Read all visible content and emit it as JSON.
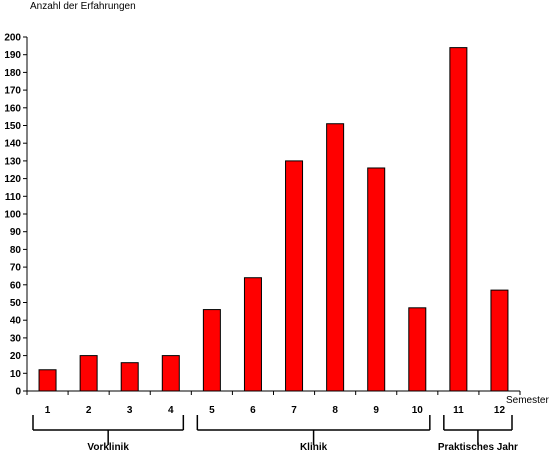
{
  "chart_data": {
    "type": "bar",
    "title": "",
    "ylabel": "Anzahl der Erfahrungen",
    "xlabel": "Semester",
    "categories": [
      "1",
      "2",
      "3",
      "4",
      "5",
      "6",
      "7",
      "8",
      "9",
      "10",
      "11",
      "12"
    ],
    "values": [
      12,
      20,
      16,
      20,
      46,
      64,
      130,
      151,
      126,
      47,
      194,
      57
    ],
    "ylim": [
      0,
      200
    ],
    "yticks": [
      "0",
      "10",
      "20",
      "30",
      "40",
      "50",
      "60",
      "70",
      "80",
      "90",
      "100",
      "110",
      "120",
      "130",
      "140",
      "150",
      "160",
      "170",
      "180",
      "190",
      "200"
    ],
    "grid": false,
    "legend": "none",
    "bar_color": "#ff0000",
    "groups": [
      {
        "label": "Vorklinik",
        "from": "1",
        "to": "4"
      },
      {
        "label": "Klinik",
        "from": "5",
        "to": "10"
      },
      {
        "label": "Praktisches Jahr",
        "from": "11",
        "to": "12"
      }
    ]
  }
}
